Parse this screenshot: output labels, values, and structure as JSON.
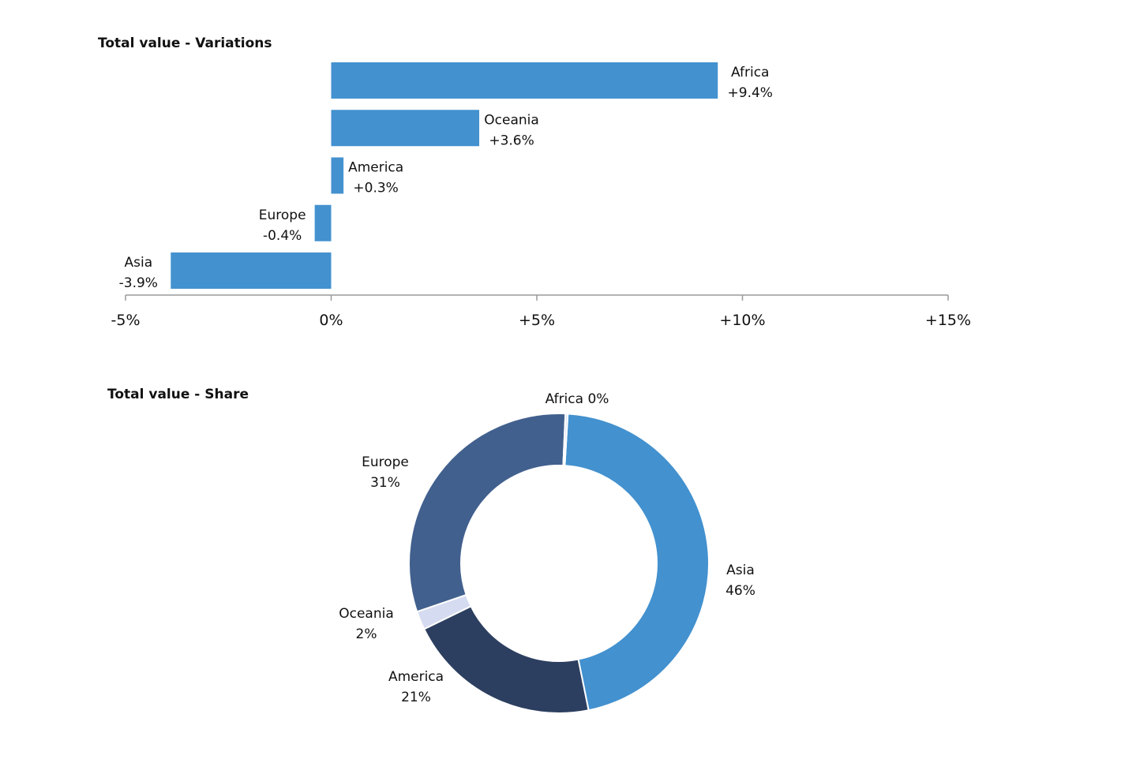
{
  "chart_data": [
    {
      "type": "bar",
      "orientation": "horizontal",
      "title": "Total value - Variations",
      "categories": [
        "Africa",
        "Oceania",
        "America",
        "Europe",
        "Asia"
      ],
      "values": [
        9.4,
        3.6,
        0.3,
        -0.4,
        -3.9
      ],
      "value_labels": [
        "+9.4%",
        "+3.6%",
        "+0.3%",
        "-0.4%",
        "-3.9%"
      ],
      "xlim": [
        -5,
        15
      ],
      "xticks": [
        -5,
        0,
        5,
        10,
        15
      ],
      "xtick_labels": [
        "-5%",
        "0%",
        "+5%",
        "+10%",
        "+15%"
      ],
      "xlabel": "",
      "ylabel": "",
      "grid": false,
      "legend": "none",
      "bar_color": "#4391CF",
      "axis_color": "#9A9A9A"
    },
    {
      "type": "pie",
      "style": "donut",
      "title": "Total value - Share",
      "categories": [
        "Asia",
        "America",
        "Oceania",
        "Europe",
        "Africa"
      ],
      "values": [
        46,
        21,
        2,
        31,
        0
      ],
      "value_labels": [
        "46%",
        "21%",
        "2%",
        "31%",
        "0%"
      ],
      "slice_labels": [
        "Asia 46%",
        "America 21%",
        "Oceania 2%",
        "Europe 31%",
        "Africa 0%"
      ],
      "colors": [
        "#4391CF",
        "#2C3F60",
        "#D5DBF0",
        "#41608E",
        "#D5DBF0"
      ],
      "legend": "none"
    }
  ]
}
